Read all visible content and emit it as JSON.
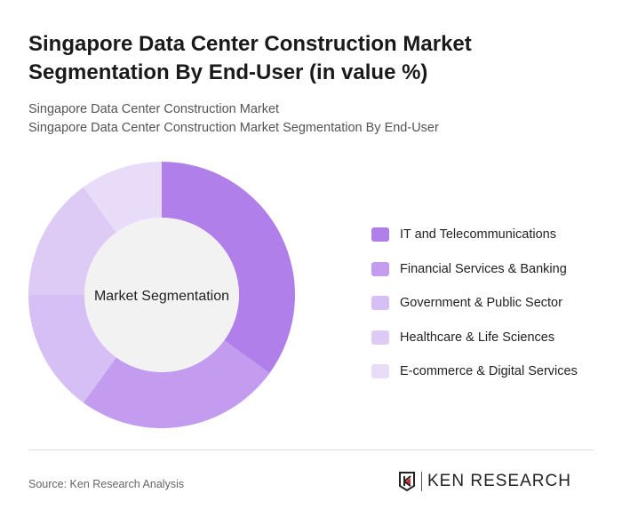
{
  "header": {
    "title": "Singapore Data Center Construction Market Segmentation By End-User (in value %)",
    "subtitle1": "Singapore Data Center Construction Market",
    "subtitle2": "Singapore Data Center Construction Market Segmentation By End-User"
  },
  "chart_data": {
    "type": "pie",
    "donut": true,
    "center_label": "Market Segmentation",
    "categories": [
      "IT and Telecommunications",
      "Financial Services & Banking",
      "Government & Public Sector",
      "Healthcare & Life Sciences",
      "E-commerce & Digital Services"
    ],
    "values": [
      35,
      25,
      15,
      15,
      10
    ],
    "colors": [
      "#b07fe9",
      "#c39cef",
      "#d6bff4",
      "#ddcbf6",
      "#e8dcf9"
    ],
    "legend_position": "right"
  },
  "footer": {
    "source": "Source: Ken Research Analysis",
    "logo_text": "KEN RESEARCH"
  }
}
